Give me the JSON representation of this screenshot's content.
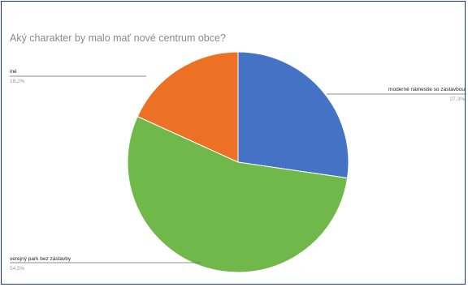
{
  "chart_data": {
    "type": "pie",
    "title": "Aký charakter by malo mať nové centrum obce?",
    "slices": [
      {
        "label": "moderné námestie so zástavbou",
        "value": 27.3,
        "display": "27,3%",
        "color": "#4472c4"
      },
      {
        "label": "verejný park bez zástavby",
        "value": 54.5,
        "display": "54,5%",
        "color": "#70b849"
      },
      {
        "label": "iné",
        "value": 18.2,
        "display": "18,2%",
        "color": "#ed7125"
      }
    ]
  }
}
